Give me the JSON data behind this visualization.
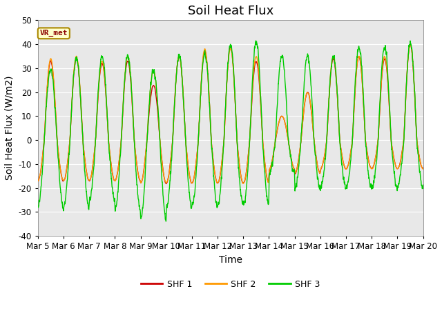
{
  "title": "Soil Heat Flux",
  "ylabel": "Soil Heat Flux (W/m2)",
  "xlabel": "Time",
  "ylim": [
    -40,
    50
  ],
  "xlim": [
    0,
    15
  ],
  "x_tick_labels": [
    "Mar 5",
    "Mar 6",
    "Mar 7",
    "Mar 8",
    "Mar 9",
    "Mar 10",
    "Mar 11",
    "Mar 12",
    "Mar 13",
    "Mar 14",
    "Mar 15",
    "Mar 16",
    "Mar 17",
    "Mar 18",
    "Mar 19",
    "Mar 20"
  ],
  "legend_labels": [
    "SHF 1",
    "SHF 2",
    "SHF 3"
  ],
  "line_colors": [
    "#cc0000",
    "#ff9900",
    "#00cc00"
  ],
  "bg_color": "#ffffff",
  "plot_bg": "#e8e8e8",
  "grid_color": "#ffffff",
  "vr_met_label": "VR_met",
  "vr_met_color": "#8b0000",
  "vr_met_bg": "#ffffcc",
  "vr_met_edge": "#aa8800",
  "yticks": [
    -40,
    -30,
    -20,
    -10,
    0,
    10,
    20,
    30,
    40,
    50
  ],
  "title_fontsize": 13,
  "label_fontsize": 10,
  "tick_fontsize": 8.5
}
